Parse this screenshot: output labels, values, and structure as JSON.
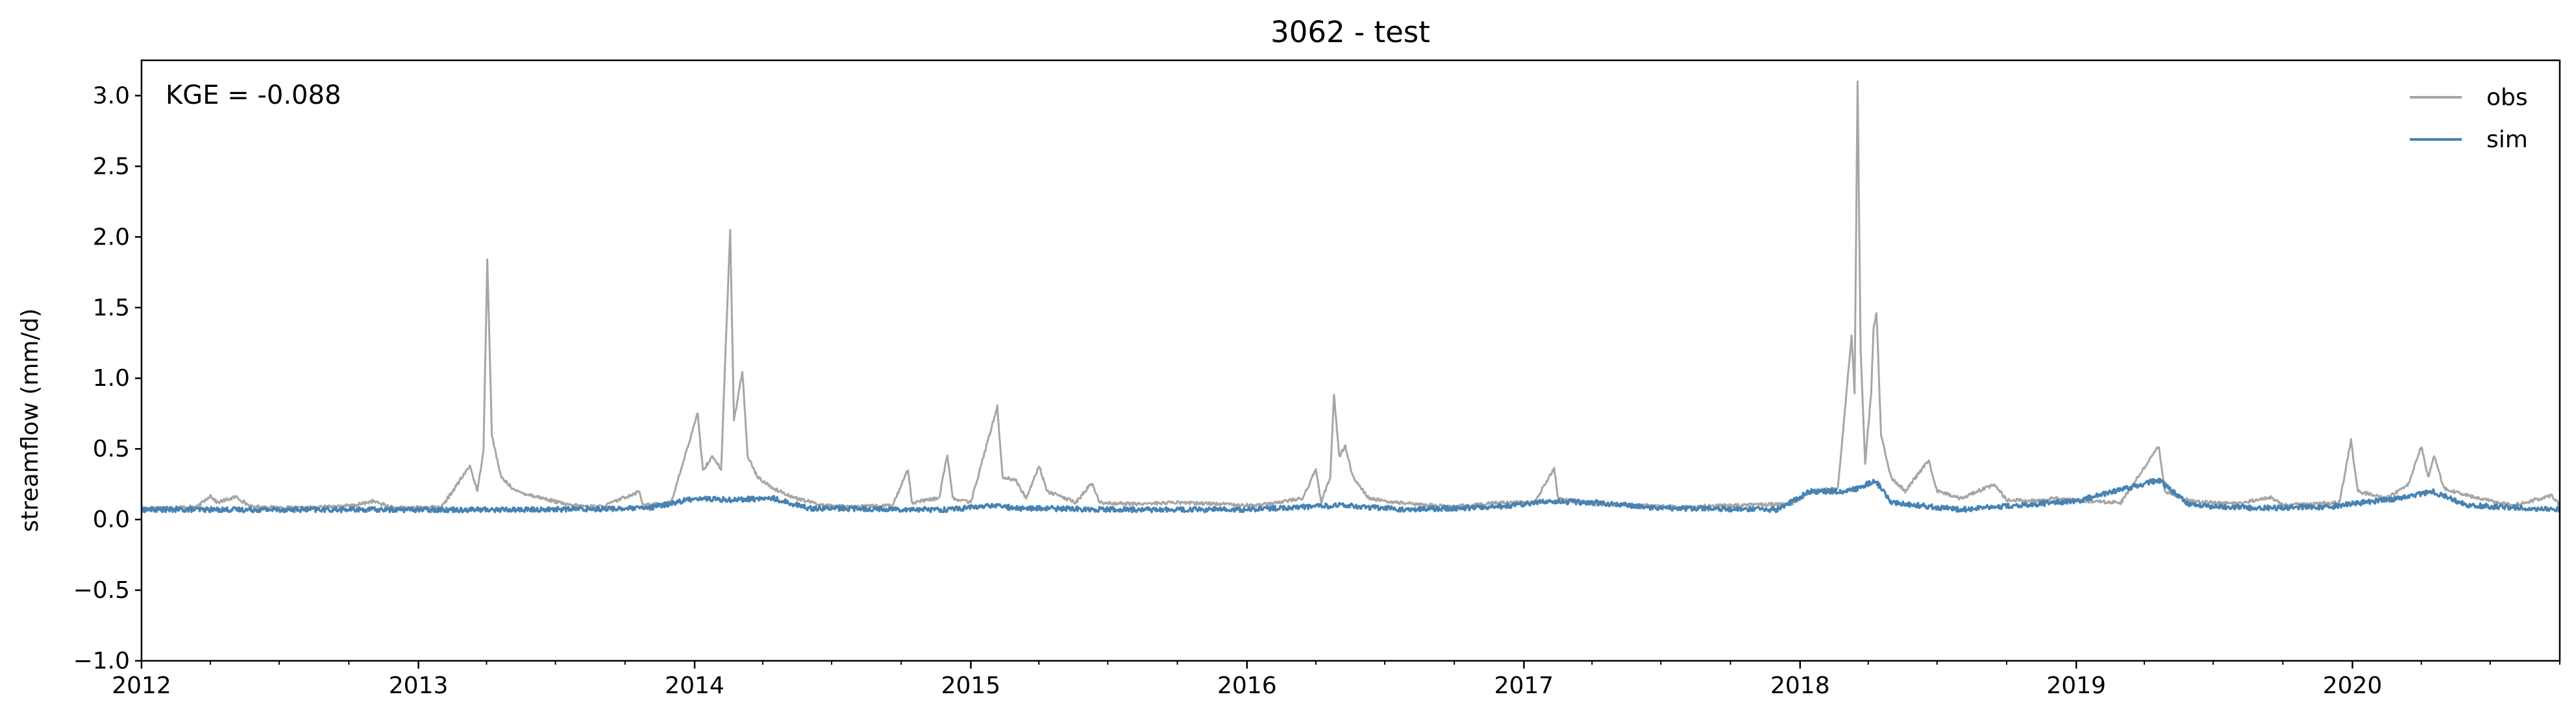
{
  "chart_data": {
    "type": "line",
    "title": "3062 - test",
    "xlabel": "",
    "ylabel": "streamflow (mm/d)",
    "annotation": "KGE = -0.088",
    "xlim": [
      "2012-01-01",
      "2020-10-01"
    ],
    "ylim": [
      -1.0,
      3.25
    ],
    "x_tick_labels": [
      "2012",
      "2013",
      "2014",
      "2015",
      "2016",
      "2017",
      "2018",
      "2019",
      "2020"
    ],
    "y_ticks": [
      -1.0,
      -0.5,
      0.0,
      0.5,
      1.0,
      1.5,
      2.0,
      2.5,
      3.0
    ],
    "y_tick_labels": [
      "−1.0",
      "−0.5",
      "0.0",
      "0.5",
      "1.0",
      "1.5",
      "2.0",
      "2.5",
      "3.0"
    ],
    "legend_position": "top-right",
    "grid": false,
    "series": [
      {
        "name": "obs",
        "color": "#a6a6a6",
        "points": [
          [
            "2012-01-01",
            0.08
          ],
          [
            "2012-03-15",
            0.09
          ],
          [
            "2012-04-01",
            0.17
          ],
          [
            "2012-04-10",
            0.12
          ],
          [
            "2012-05-05",
            0.16
          ],
          [
            "2012-05-25",
            0.09
          ],
          [
            "2012-08-01",
            0.08
          ],
          [
            "2012-10-10",
            0.1
          ],
          [
            "2012-11-01",
            0.13
          ],
          [
            "2012-12-01",
            0.08
          ],
          [
            "2013-02-01",
            0.09
          ],
          [
            "2013-03-10",
            0.38
          ],
          [
            "2013-03-20",
            0.2
          ],
          [
            "2013-03-28",
            0.5
          ],
          [
            "2013-04-02",
            1.85
          ],
          [
            "2013-04-08",
            0.6
          ],
          [
            "2013-04-20",
            0.3
          ],
          [
            "2013-05-10",
            0.2
          ],
          [
            "2013-06-15",
            0.15
          ],
          [
            "2013-07-20",
            0.1
          ],
          [
            "2013-09-01",
            0.09
          ],
          [
            "2013-10-20",
            0.2
          ],
          [
            "2013-10-25",
            0.1
          ],
          [
            "2013-12-01",
            0.12
          ],
          [
            "2014-01-05",
            0.75
          ],
          [
            "2014-01-12",
            0.35
          ],
          [
            "2014-01-25",
            0.45
          ],
          [
            "2014-02-05",
            0.35
          ],
          [
            "2014-02-12",
            1.35
          ],
          [
            "2014-02-17",
            2.05
          ],
          [
            "2014-02-22",
            0.7
          ],
          [
            "2014-03-05",
            1.05
          ],
          [
            "2014-03-12",
            0.45
          ],
          [
            "2014-03-25",
            0.3
          ],
          [
            "2014-04-15",
            0.22
          ],
          [
            "2014-05-15",
            0.15
          ],
          [
            "2014-06-20",
            0.1
          ],
          [
            "2014-08-01",
            0.09
          ],
          [
            "2014-09-20",
            0.1
          ],
          [
            "2014-10-10",
            0.36
          ],
          [
            "2014-10-15",
            0.12
          ],
          [
            "2014-11-20",
            0.15
          ],
          [
            "2014-12-01",
            0.46
          ],
          [
            "2014-12-08",
            0.15
          ],
          [
            "2015-01-01",
            0.12
          ],
          [
            "2015-02-05",
            0.8
          ],
          [
            "2015-02-12",
            0.3
          ],
          [
            "2015-03-01",
            0.28
          ],
          [
            "2015-03-15",
            0.15
          ],
          [
            "2015-04-01",
            0.38
          ],
          [
            "2015-04-12",
            0.2
          ],
          [
            "2015-05-20",
            0.12
          ],
          [
            "2015-06-10",
            0.26
          ],
          [
            "2015-06-20",
            0.12
          ],
          [
            "2015-08-01",
            0.11
          ],
          [
            "2015-10-01",
            0.12
          ],
          [
            "2015-12-01",
            0.11
          ],
          [
            "2016-01-15",
            0.1
          ],
          [
            "2016-03-15",
            0.15
          ],
          [
            "2016-04-01",
            0.36
          ],
          [
            "2016-04-08",
            0.12
          ],
          [
            "2016-04-20",
            0.3
          ],
          [
            "2016-04-25",
            0.88
          ],
          [
            "2016-05-02",
            0.45
          ],
          [
            "2016-05-10",
            0.52
          ],
          [
            "2016-05-20",
            0.3
          ],
          [
            "2016-06-10",
            0.15
          ],
          [
            "2016-07-15",
            0.12
          ],
          [
            "2016-09-01",
            0.1
          ],
          [
            "2016-10-01",
            0.09
          ],
          [
            "2016-12-01",
            0.12
          ],
          [
            "2017-01-15",
            0.12
          ],
          [
            "2017-02-10",
            0.36
          ],
          [
            "2017-02-15",
            0.15
          ],
          [
            "2017-04-01",
            0.11
          ],
          [
            "2017-06-01",
            0.1
          ],
          [
            "2017-08-01",
            0.09
          ],
          [
            "2017-10-01",
            0.1
          ],
          [
            "2017-12-20",
            0.11
          ],
          [
            "2018-01-15",
            0.2
          ],
          [
            "2018-02-20",
            0.22
          ],
          [
            "2018-03-10",
            1.3
          ],
          [
            "2018-03-14",
            0.9
          ],
          [
            "2018-03-18",
            3.1
          ],
          [
            "2018-03-22",
            1.2
          ],
          [
            "2018-03-28",
            0.4
          ],
          [
            "2018-04-05",
            0.9
          ],
          [
            "2018-04-08",
            1.35
          ],
          [
            "2018-04-12",
            1.47
          ],
          [
            "2018-04-18",
            0.6
          ],
          [
            "2018-05-01",
            0.3
          ],
          [
            "2018-05-20",
            0.2
          ],
          [
            "2018-06-20",
            0.42
          ],
          [
            "2018-07-01",
            0.2
          ],
          [
            "2018-08-01",
            0.15
          ],
          [
            "2018-09-15",
            0.25
          ],
          [
            "2018-10-01",
            0.14
          ],
          [
            "2018-11-15",
            0.13
          ],
          [
            "2018-12-01",
            0.15
          ],
          [
            "2019-01-15",
            0.13
          ],
          [
            "2019-03-01",
            0.12
          ],
          [
            "2019-04-20",
            0.52
          ],
          [
            "2019-04-28",
            0.2
          ],
          [
            "2019-06-01",
            0.13
          ],
          [
            "2019-08-01",
            0.11
          ],
          [
            "2019-09-15",
            0.16
          ],
          [
            "2019-10-01",
            0.1
          ],
          [
            "2019-12-15",
            0.12
          ],
          [
            "2019-12-30",
            0.56
          ],
          [
            "2020-01-08",
            0.2
          ],
          [
            "2020-02-15",
            0.15
          ],
          [
            "2020-03-15",
            0.25
          ],
          [
            "2020-04-01",
            0.52
          ],
          [
            "2020-04-10",
            0.3
          ],
          [
            "2020-04-18",
            0.45
          ],
          [
            "2020-05-01",
            0.22
          ],
          [
            "2020-06-15",
            0.15
          ],
          [
            "2020-08-01",
            0.1
          ],
          [
            "2020-09-20",
            0.17
          ],
          [
            "2020-10-01",
            0.1
          ]
        ]
      },
      {
        "name": "sim",
        "color": "#4682b4",
        "points": [
          [
            "2012-01-01",
            0.07
          ],
          [
            "2012-06-01",
            0.07
          ],
          [
            "2013-01-01",
            0.07
          ],
          [
            "2013-06-01",
            0.07
          ],
          [
            "2013-11-01",
            0.08
          ],
          [
            "2014-01-01",
            0.15
          ],
          [
            "2014-02-15",
            0.14
          ],
          [
            "2014-04-15",
            0.15
          ],
          [
            "2014-06-01",
            0.08
          ],
          [
            "2014-12-01",
            0.07
          ],
          [
            "2015-02-01",
            0.1
          ],
          [
            "2015-03-01",
            0.08
          ],
          [
            "2015-08-01",
            0.07
          ],
          [
            "2016-01-01",
            0.07
          ],
          [
            "2016-05-01",
            0.1
          ],
          [
            "2016-08-01",
            0.07
          ],
          [
            "2016-12-01",
            0.09
          ],
          [
            "2017-02-01",
            0.13
          ],
          [
            "2017-04-01",
            0.12
          ],
          [
            "2017-07-01",
            0.08
          ],
          [
            "2017-12-01",
            0.07
          ],
          [
            "2018-01-15",
            0.2
          ],
          [
            "2018-03-01",
            0.2
          ],
          [
            "2018-03-20",
            0.22
          ],
          [
            "2018-04-10",
            0.28
          ],
          [
            "2018-05-01",
            0.12
          ],
          [
            "2018-08-01",
            0.07
          ],
          [
            "2018-10-15",
            0.1
          ],
          [
            "2019-01-01",
            0.13
          ],
          [
            "2019-04-20",
            0.28
          ],
          [
            "2019-06-01",
            0.1
          ],
          [
            "2019-09-01",
            0.08
          ],
          [
            "2019-12-01",
            0.09
          ],
          [
            "2020-03-01",
            0.15
          ],
          [
            "2020-04-15",
            0.2
          ],
          [
            "2020-06-01",
            0.1
          ],
          [
            "2020-10-01",
            0.07
          ]
        ]
      }
    ]
  }
}
